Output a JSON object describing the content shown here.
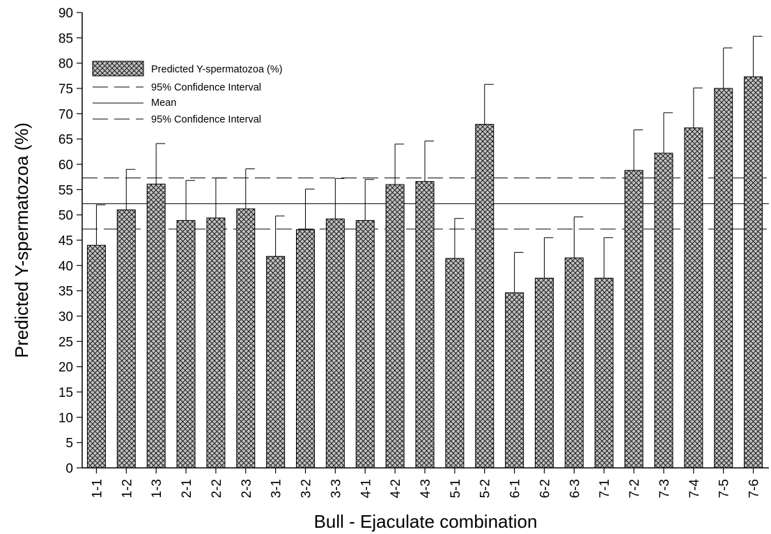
{
  "chart_data": {
    "type": "bar",
    "xlabel": "Bull - Ejaculate combination",
    "ylabel": "Predicted Y-spermatozoa (%)",
    "ylim": [
      0,
      90
    ],
    "ytick_step": 5,
    "grid": false,
    "legend_position": "top-left",
    "categories": [
      "1-1",
      "1-2",
      "1-3",
      "2-1",
      "2-2",
      "2-3",
      "3-1",
      "3-2",
      "3-3",
      "4-1",
      "4-2",
      "4-3",
      "5-1",
      "5-2",
      "6-1",
      "6-2",
      "6-3",
      "7-1",
      "7-2",
      "7-3",
      "7-4",
      "7-5",
      "7-6"
    ],
    "series": [
      {
        "name": "Predicted Y-spermatozoa (%)",
        "values": [
          44.0,
          51.0,
          56.1,
          48.9,
          49.4,
          51.2,
          41.8,
          47.1,
          49.2,
          48.9,
          56.0,
          56.6,
          41.4,
          67.9,
          34.6,
          37.5,
          41.5,
          37.5,
          58.8,
          62.2,
          67.2,
          75.0,
          77.3
        ],
        "error_upper": [
          52.0,
          59.0,
          64.1,
          56.8,
          57.3,
          59.1,
          49.8,
          55.1,
          57.2,
          57.0,
          64.0,
          64.6,
          49.3,
          75.8,
          42.6,
          45.5,
          49.6,
          45.5,
          66.8,
          70.2,
          75.1,
          83.0,
          85.3
        ]
      }
    ],
    "reference_lines": [
      {
        "name": "95% Confidence Interval",
        "value": 57.3,
        "style": "dashed"
      },
      {
        "name": "Mean",
        "value": 52.2,
        "style": "solid"
      },
      {
        "name": "95% Confidence Interval",
        "value": 47.2,
        "style": "dashed"
      }
    ],
    "colors": {
      "bar_fill": "#c0c0c0",
      "bar_hatch": "#000000",
      "line": "#000000"
    }
  }
}
